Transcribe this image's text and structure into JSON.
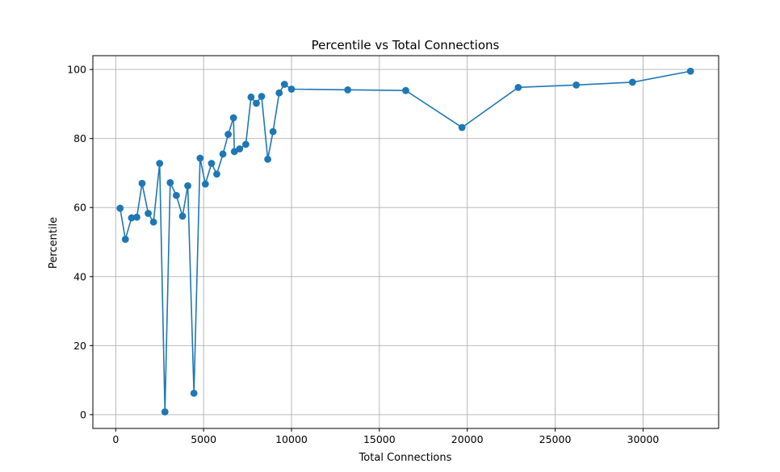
{
  "chart_data": {
    "type": "line",
    "title": "Percentile vs Total Connections",
    "xlabel": "Total Connections",
    "ylabel": "Percentile",
    "xlim": [
      -1300,
      34300
    ],
    "ylim": [
      -4,
      104
    ],
    "xticks": [
      0,
      5000,
      10000,
      15000,
      20000,
      25000,
      30000
    ],
    "yticks": [
      0,
      20,
      40,
      60,
      80,
      100
    ],
    "grid": true,
    "marker": "circle",
    "color": "#1f77b4",
    "series": [
      {
        "x": [
          250,
          550,
          900,
          1200,
          1500,
          1850,
          2150,
          2500,
          2800,
          3100,
          3450,
          3800,
          4100,
          4450,
          4800,
          5100,
          5450,
          5750,
          6100,
          6400,
          6700,
          6750,
          7050,
          7400,
          7700,
          8000,
          8300,
          8650,
          8950,
          9300,
          9600,
          10000,
          13200,
          16500,
          19700,
          22900,
          26200,
          29400,
          32700
        ],
        "y": [
          59.8,
          50.8,
          57.0,
          57.2,
          67.0,
          58.3,
          55.8,
          72.8,
          0.8,
          67.2,
          63.5,
          57.5,
          66.3,
          6.2,
          74.3,
          66.8,
          72.8,
          69.7,
          75.5,
          81.2,
          86.0,
          76.2,
          77.0,
          78.3,
          92.0,
          90.2,
          92.2,
          74.0,
          82.0,
          93.2,
          95.7,
          94.3,
          94.1,
          93.9,
          83.2,
          94.8,
          95.5,
          96.3,
          99.5
        ]
      }
    ]
  }
}
